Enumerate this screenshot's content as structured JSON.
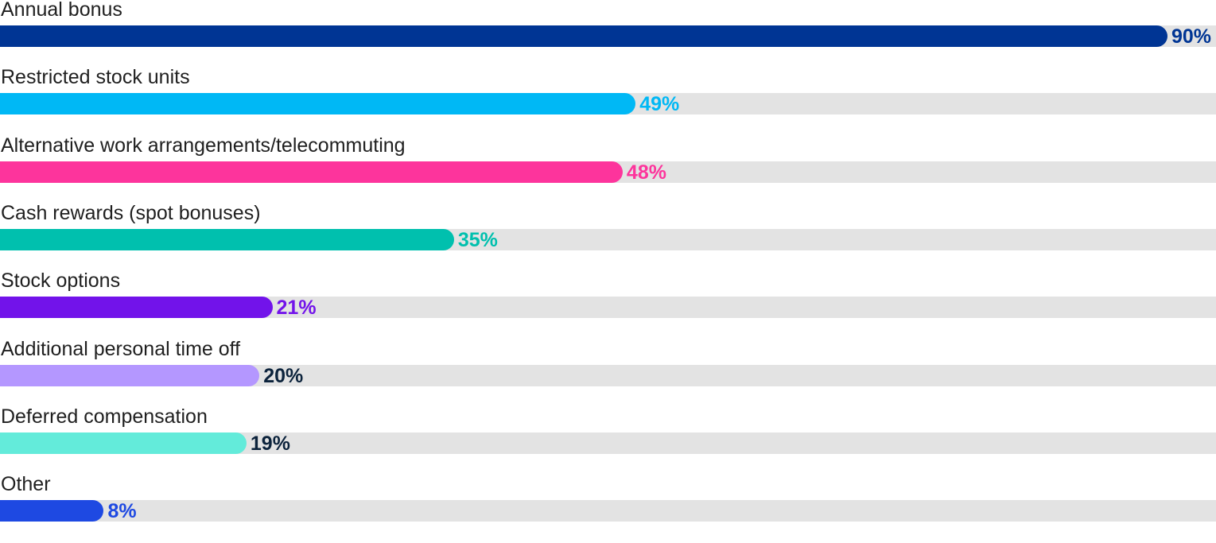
{
  "chart_data": {
    "type": "bar",
    "orientation": "horizontal",
    "xlim": [
      0,
      100
    ],
    "grid": false,
    "legend": "none",
    "categories": [
      "Annual bonus",
      "Restricted stock units",
      "Alternative work arrangements/telecommuting",
      "Cash rewards (spot bonuses)",
      "Stock options",
      "Additional personal time off",
      "Deferred compensation",
      "Other"
    ],
    "values": [
      90,
      49,
      48,
      35,
      21,
      20,
      19,
      8
    ],
    "value_labels": [
      "90%",
      "49%",
      "48%",
      "35%",
      "21%",
      "20%",
      "19%",
      "8%"
    ],
    "bar_colors": [
      "#003594",
      "#00b8f5",
      "#fd349c",
      "#00c0ae",
      "#7213ea",
      "#b497ff",
      "#63ebda",
      "#1e49e2"
    ],
    "label_colors": [
      "#003594",
      "#00b8f5",
      "#fd349c",
      "#00c0ae",
      "#7213ea",
      "#0c233c",
      "#0c233c",
      "#1e49e2"
    ],
    "track_color": "#e3e3e3"
  }
}
